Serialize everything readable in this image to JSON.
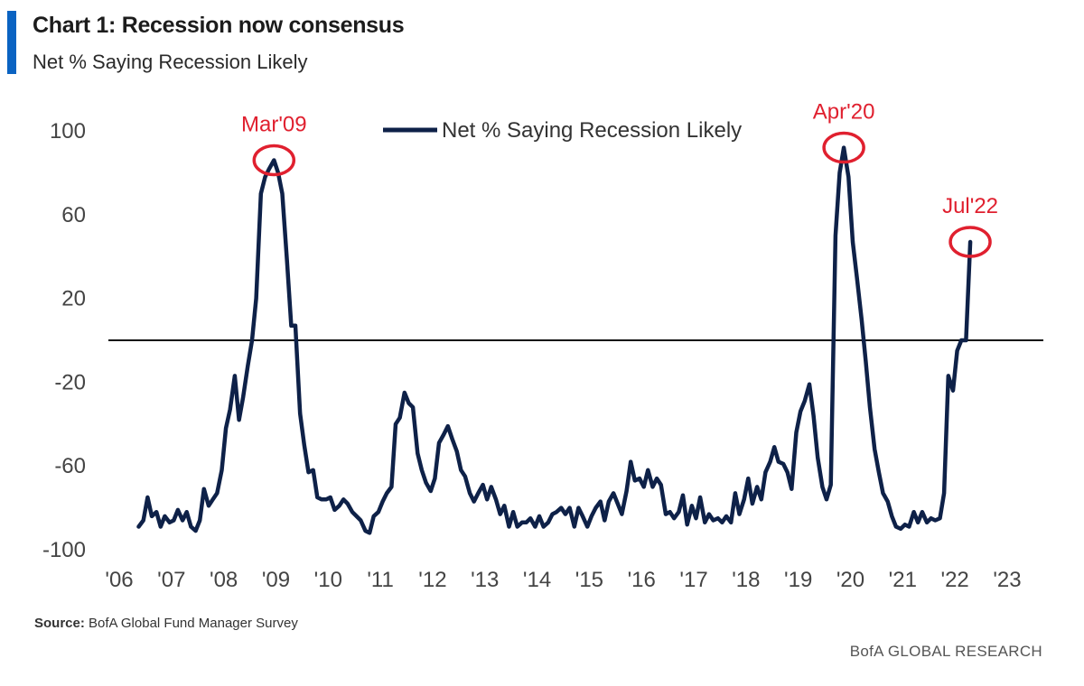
{
  "header": {
    "title": "Chart 1: Recession now consensus",
    "subtitle": "Net % Saying Recession Likely"
  },
  "footer": {
    "source_label": "Source:",
    "source_text": "BofA Global Fund Manager Survey",
    "brand": "BofA GLOBAL RESEARCH"
  },
  "colors": {
    "line": "#0e2148",
    "annotation": "#e0202f",
    "accent": "#0a63c2",
    "zero_line": "#111111"
  },
  "chart_data": {
    "type": "line",
    "title": "Chart 1: Recession now consensus",
    "subtitle": "Net % Saying Recession Likely",
    "xlabel": "",
    "ylabel": "",
    "x_unit": "year",
    "xlim": [
      2006,
      2023.9
    ],
    "ylim": [
      -100,
      110
    ],
    "yticks": [
      100,
      60,
      20,
      -20,
      -60,
      -100
    ],
    "xticks": [
      2006,
      2007,
      2008,
      2009,
      2010,
      2011,
      2012,
      2013,
      2014,
      2015,
      2016,
      2017,
      2018,
      2019,
      2020,
      2021,
      2022,
      2023
    ],
    "xtick_labels": [
      "'06",
      "'07",
      "'08",
      "'09",
      "'10",
      "'11",
      "'12",
      "'13",
      "'14",
      "'15",
      "'16",
      "'17",
      "'18",
      "'19",
      "'20",
      "'21",
      "'22",
      "'23"
    ],
    "reference_line_y": 0,
    "grid": false,
    "legend": {
      "entries": [
        "Net % Saying Recession Likely"
      ],
      "placement": "top-center"
    },
    "series": [
      {
        "name": "Net % Saying Recession Likely",
        "points": [
          [
            2006.58,
            -89
          ],
          [
            2006.67,
            -86
          ],
          [
            2006.75,
            -75
          ],
          [
            2006.83,
            -84
          ],
          [
            2006.92,
            -82
          ],
          [
            2007.0,
            -89
          ],
          [
            2007.08,
            -84
          ],
          [
            2007.17,
            -87
          ],
          [
            2007.25,
            -86
          ],
          [
            2007.33,
            -81
          ],
          [
            2007.42,
            -86
          ],
          [
            2007.5,
            -82
          ],
          [
            2007.58,
            -89
          ],
          [
            2007.67,
            -91
          ],
          [
            2007.75,
            -86
          ],
          [
            2007.83,
            -71
          ],
          [
            2007.92,
            -79
          ],
          [
            2008.0,
            -76
          ],
          [
            2008.08,
            -73
          ],
          [
            2008.17,
            -62
          ],
          [
            2008.25,
            -42
          ],
          [
            2008.33,
            -33
          ],
          [
            2008.42,
            -17
          ],
          [
            2008.5,
            -38
          ],
          [
            2008.58,
            -27
          ],
          [
            2008.67,
            -12
          ],
          [
            2008.75,
            0
          ],
          [
            2008.83,
            20
          ],
          [
            2008.92,
            70
          ],
          [
            2009.0,
            78
          ],
          [
            2009.08,
            82
          ],
          [
            2009.17,
            86
          ],
          [
            2009.25,
            80
          ],
          [
            2009.33,
            70
          ],
          [
            2009.42,
            38
          ],
          [
            2009.5,
            7
          ],
          [
            2009.58,
            7
          ],
          [
            2009.67,
            -35
          ],
          [
            2009.75,
            -50
          ],
          [
            2009.83,
            -63
          ],
          [
            2009.92,
            -62
          ],
          [
            2010.0,
            -75
          ],
          [
            2010.08,
            -76
          ],
          [
            2010.17,
            -76
          ],
          [
            2010.25,
            -75
          ],
          [
            2010.33,
            -81
          ],
          [
            2010.42,
            -79
          ],
          [
            2010.5,
            -76
          ],
          [
            2010.58,
            -78
          ],
          [
            2010.67,
            -82
          ],
          [
            2010.75,
            -84
          ],
          [
            2010.83,
            -86
          ],
          [
            2010.92,
            -91
          ],
          [
            2011.0,
            -92
          ],
          [
            2011.08,
            -84
          ],
          [
            2011.17,
            -82
          ],
          [
            2011.25,
            -77
          ],
          [
            2011.33,
            -73
          ],
          [
            2011.42,
            -70
          ],
          [
            2011.5,
            -40
          ],
          [
            2011.58,
            -37
          ],
          [
            2011.67,
            -25
          ],
          [
            2011.75,
            -30
          ],
          [
            2011.83,
            -32
          ],
          [
            2011.92,
            -54
          ],
          [
            2012.0,
            -62
          ],
          [
            2012.08,
            -68
          ],
          [
            2012.17,
            -72
          ],
          [
            2012.25,
            -66
          ],
          [
            2012.33,
            -49
          ],
          [
            2012.42,
            -45
          ],
          [
            2012.5,
            -41
          ],
          [
            2012.58,
            -47
          ],
          [
            2012.67,
            -53
          ],
          [
            2012.75,
            -62
          ],
          [
            2012.83,
            -65
          ],
          [
            2012.92,
            -73
          ],
          [
            2013.0,
            -77
          ],
          [
            2013.08,
            -73
          ],
          [
            2013.17,
            -69
          ],
          [
            2013.25,
            -76
          ],
          [
            2013.33,
            -70
          ],
          [
            2013.42,
            -76
          ],
          [
            2013.5,
            -83
          ],
          [
            2013.58,
            -79
          ],
          [
            2013.67,
            -89
          ],
          [
            2013.75,
            -82
          ],
          [
            2013.83,
            -89
          ],
          [
            2013.92,
            -87
          ],
          [
            2014.0,
            -87
          ],
          [
            2014.08,
            -85
          ],
          [
            2014.17,
            -89
          ],
          [
            2014.25,
            -84
          ],
          [
            2014.33,
            -89
          ],
          [
            2014.42,
            -87
          ],
          [
            2014.5,
            -83
          ],
          [
            2014.58,
            -82
          ],
          [
            2014.67,
            -80
          ],
          [
            2014.75,
            -83
          ],
          [
            2014.83,
            -80
          ],
          [
            2014.92,
            -89
          ],
          [
            2015.0,
            -80
          ],
          [
            2015.08,
            -84
          ],
          [
            2015.17,
            -89
          ],
          [
            2015.25,
            -84
          ],
          [
            2015.33,
            -80
          ],
          [
            2015.42,
            -77
          ],
          [
            2015.5,
            -86
          ],
          [
            2015.58,
            -77
          ],
          [
            2015.67,
            -73
          ],
          [
            2015.75,
            -78
          ],
          [
            2015.83,
            -83
          ],
          [
            2015.92,
            -72
          ],
          [
            2016.0,
            -58
          ],
          [
            2016.08,
            -67
          ],
          [
            2016.17,
            -66
          ],
          [
            2016.25,
            -70
          ],
          [
            2016.33,
            -62
          ],
          [
            2016.42,
            -70
          ],
          [
            2016.5,
            -66
          ],
          [
            2016.58,
            -69
          ],
          [
            2016.67,
            -83
          ],
          [
            2016.75,
            -82
          ],
          [
            2016.83,
            -85
          ],
          [
            2016.92,
            -82
          ],
          [
            2017.0,
            -74
          ],
          [
            2017.08,
            -88
          ],
          [
            2017.17,
            -79
          ],
          [
            2017.25,
            -85
          ],
          [
            2017.33,
            -75
          ],
          [
            2017.42,
            -87
          ],
          [
            2017.5,
            -83
          ],
          [
            2017.58,
            -86
          ],
          [
            2017.67,
            -85
          ],
          [
            2017.75,
            -87
          ],
          [
            2017.83,
            -84
          ],
          [
            2017.92,
            -87
          ],
          [
            2018.0,
            -73
          ],
          [
            2018.08,
            -83
          ],
          [
            2018.17,
            -76
          ],
          [
            2018.25,
            -66
          ],
          [
            2018.33,
            -78
          ],
          [
            2018.42,
            -70
          ],
          [
            2018.5,
            -76
          ],
          [
            2018.58,
            -63
          ],
          [
            2018.67,
            -58
          ],
          [
            2018.75,
            -51
          ],
          [
            2018.83,
            -58
          ],
          [
            2018.92,
            -59
          ],
          [
            2019.0,
            -63
          ],
          [
            2019.08,
            -71
          ],
          [
            2019.17,
            -44
          ],
          [
            2019.25,
            -34
          ],
          [
            2019.33,
            -29
          ],
          [
            2019.42,
            -21
          ],
          [
            2019.5,
            -36
          ],
          [
            2019.58,
            -56
          ],
          [
            2019.67,
            -70
          ],
          [
            2019.75,
            -76
          ],
          [
            2019.83,
            -69
          ],
          [
            2019.92,
            50
          ],
          [
            2020.0,
            80
          ],
          [
            2020.08,
            92
          ],
          [
            2020.17,
            78
          ],
          [
            2020.25,
            47
          ],
          [
            2020.33,
            30
          ],
          [
            2020.42,
            10
          ],
          [
            2020.5,
            -10
          ],
          [
            2020.58,
            -32
          ],
          [
            2020.67,
            -52
          ],
          [
            2020.75,
            -63
          ],
          [
            2020.83,
            -73
          ],
          [
            2020.92,
            -77
          ],
          [
            2021.0,
            -84
          ],
          [
            2021.08,
            -89
          ],
          [
            2021.17,
            -90
          ],
          [
            2021.25,
            -88
          ],
          [
            2021.33,
            -89
          ],
          [
            2021.42,
            -82
          ],
          [
            2021.5,
            -87
          ],
          [
            2021.58,
            -82
          ],
          [
            2021.67,
            -87
          ],
          [
            2021.75,
            -85
          ],
          [
            2021.83,
            -86
          ],
          [
            2021.92,
            -85
          ],
          [
            2022.0,
            -73
          ],
          [
            2022.08,
            -17
          ],
          [
            2022.17,
            -24
          ],
          [
            2022.25,
            -5
          ],
          [
            2022.33,
            0
          ],
          [
            2022.42,
            0
          ],
          [
            2022.5,
            47
          ]
        ]
      }
    ],
    "annotations": [
      {
        "label": "Mar'09",
        "x": 2009.17,
        "y": 86
      },
      {
        "label": "Apr'20",
        "x": 2020.08,
        "y": 92
      },
      {
        "label": "Jul'22",
        "x": 2022.5,
        "y": 47
      }
    ]
  }
}
